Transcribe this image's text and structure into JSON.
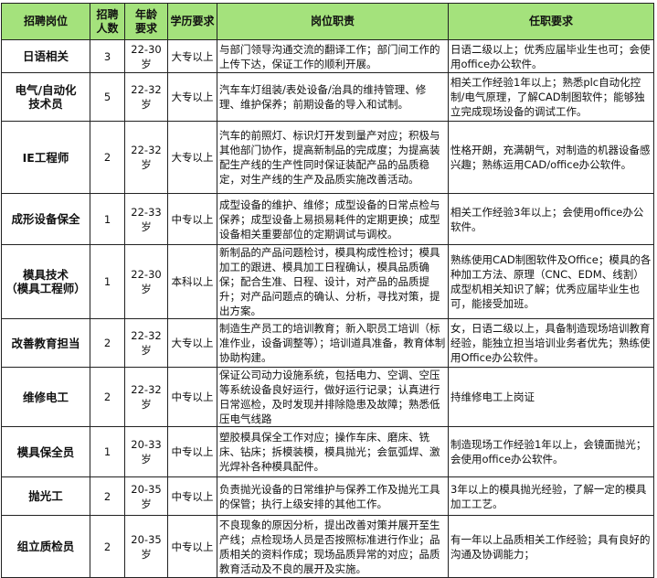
{
  "header": {
    "position": "招聘岗位",
    "count": "招聘\n人数",
    "age": "年龄\n要求",
    "education": "学历要求",
    "duties": "岗位职责",
    "requirements": "任职要求"
  },
  "header_color": "#a4e27c",
  "rows": [
    {
      "position": "日语相关",
      "count": "3",
      "age": "22-30岁",
      "education": "大专以上",
      "duties": "与部门领导沟通交流的翻译工作；部门间工作的上传下达，保证工作的顺利开展。",
      "requirements": "日语二级以上；优秀应届毕业生也可；会使用office办公软件。"
    },
    {
      "position": "电气/自动化\n技术员",
      "count": "5",
      "age": "22-32岁",
      "education": "大专以上",
      "duties": "汽车车灯组装/表处设备/治具的维持管理、修理、维护保养；前期设备的导入和试制。",
      "requirements": "相关工作经验1年以上；熟悉plc自动化控制/电气原理，了解CAD制图软件；能够独立完成现场设备的调试工作。"
    },
    {
      "position": "IE工程师",
      "count": "2",
      "age": "22-32岁",
      "education": "大专以上",
      "duties": "汽车的前照灯、标识灯开发到量产对应；积极与其他部门协作，提高新制品的完成度；为提高装配生产线的生产性同时保证装配产品的品质稳定，对生产线的生产及品质实施改善活动。",
      "requirements": "性格开朗，充满朝气，对制造的机器设备感兴趣；熟练运用CAD/office办公软件。"
    },
    {
      "position": "成形设备保全",
      "count": "1",
      "age": "22-33岁",
      "education": "中专以上",
      "duties": "成型设备的维护、维修；成型设备的日常点检与保养；成型设备上易损易耗件的定期更换；成型设备相关重要部位的定期调试与调校。",
      "requirements": "相关工作经验3年以上；会使用office办公软件。"
    },
    {
      "position": "模具技术\n（模具工程师）",
      "count": "1",
      "age": "22-30岁",
      "education": "本科以上",
      "duties": "新制品的产品问题检讨，模具构成性检讨；模具加工的跟进、模具加工日程确认，模具品质确保；配合生准、日程、设计，对产品的品质提升；对产品问题点的确认、分析，寻找对策，提出方案。",
      "requirements": "熟练使用CAD制图软件及Office；模具的各种加工方法、原理（CNC、EDM、线割）成型机相关知识了解；优秀应届毕业生也可，能接受加班。"
    },
    {
      "position": "改善教育担当",
      "count": "2",
      "age": "22-32岁",
      "education": "大专以上",
      "duties": "制造生产员工的培训教育；新入职员工培训（标准作业，设备调整等）；培训道具准备，教育体制协助构建。",
      "requirements": "女，日语二级以上，具备制造现场培训教育经验，能独立担当培训业务者优先；熟练使用Office办公软件。"
    },
    {
      "position": "维修电工",
      "count": "2",
      "age": "22-32岁",
      "education": "中专以上",
      "duties": "保证公司动力设施系统，包括电力、空调、空压等系统设备良好运行，做好运行记录；认真进行日常巡检，及时发现并排除隐患及故障；熟悉低压电气线路",
      "requirements": "持维修电工上岗证"
    },
    {
      "position": "模具保全员",
      "count": "1",
      "age": "20-33岁",
      "education": "中专以上",
      "duties": "塑胶模具保全工作对应；操作车床、磨床、铣床、钻床；拆模装模，模具抛光；会氩弧焊、激光焊补各种模具配件。",
      "requirements": "制造现场工作经验1年以上，会镜面抛光；会使用office办公软件。"
    },
    {
      "position": "抛光工",
      "count": "2",
      "age": "20-35岁",
      "education": "中专以上",
      "duties": "负责抛光设备的日常维护与保养工作及抛光工具的保管；执行上级安排的其他工作。",
      "requirements": "3年以上的模具抛光经验，了解一定的模具加工工艺。"
    },
    {
      "position": "组立质检员",
      "count": "2",
      "age": "20-35岁",
      "education": "中专以上",
      "duties": "不良现象的原因分析，提出改善对策并展开至生产线；点检现场人员是否按照标准进行作业；品质相关的资料作成；现场品质异常的对应；品质教育活动及不良的展开及实施。",
      "requirements": "有一年以上品质相关工作经验；具有良好的沟通及协调能力；"
    }
  ]
}
